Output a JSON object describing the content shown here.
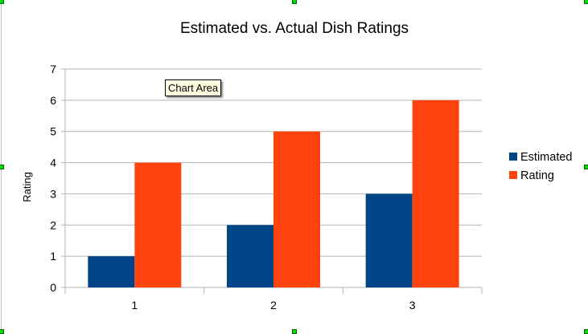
{
  "tooltip": "Chart Area",
  "chart_data": {
    "type": "bar",
    "title": "Estimated vs. Actual Dish Ratings",
    "xlabel": "",
    "ylabel": "Rating",
    "categories": [
      "1",
      "2",
      "3"
    ],
    "series": [
      {
        "name": "Estimated",
        "values": [
          1,
          2,
          3
        ],
        "color": "#004586"
      },
      {
        "name": "Rating",
        "values": [
          4,
          5,
          6
        ],
        "color": "#ff420e"
      }
    ],
    "ylim": [
      0,
      7
    ],
    "yticks": [
      "0",
      "1",
      "2",
      "3",
      "4",
      "5",
      "6",
      "7"
    ],
    "grid": true,
    "legend": "right"
  }
}
